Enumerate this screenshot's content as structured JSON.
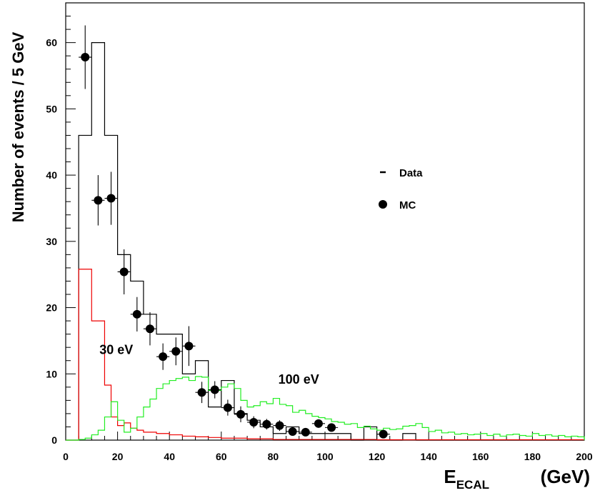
{
  "chart_data": {
    "type": "histogram",
    "xlabel_main": "E",
    "xlabel_sub": "ECAL",
    "xlabel_unit": "(GeV)",
    "ylabel": "Number of events  / 5 GeV",
    "xlim": [
      0,
      200
    ],
    "ylim": [
      0,
      66
    ],
    "xticks": [
      0,
      20,
      40,
      60,
      80,
      100,
      120,
      140,
      160,
      180,
      200
    ],
    "yticks": [
      0,
      10,
      20,
      30,
      40,
      50,
      60
    ],
    "bin_width": 5,
    "legend": [
      {
        "marker": "dash",
        "label": "Data"
      },
      {
        "marker": "dot",
        "label": "MC"
      }
    ],
    "annotations": [
      {
        "text": "30 eV",
        "x": 13,
        "y": 13
      },
      {
        "text": "100 eV",
        "x": 82,
        "y": 8.5
      }
    ],
    "series": [
      {
        "label": "Data",
        "style": "step",
        "color": "#000000",
        "edges": [
          5,
          10,
          15,
          20,
          25,
          30,
          35,
          40,
          45,
          50,
          55,
          60,
          65,
          70,
          75,
          80,
          85,
          90,
          95,
          100,
          105,
          110,
          115,
          120,
          125,
          130,
          135,
          140,
          145,
          150,
          155,
          160,
          165,
          170,
          175,
          180,
          185,
          190,
          195,
          200
        ],
        "values": [
          46,
          60,
          46,
          28,
          24,
          19,
          16,
          16,
          10,
          12,
          5,
          9,
          4,
          3,
          2,
          1,
          2,
          1,
          1,
          1,
          1,
          0,
          2,
          0,
          0,
          1,
          0,
          0,
          0,
          0,
          0,
          0,
          0,
          0,
          0,
          0,
          0,
          0,
          0
        ]
      },
      {
        "label": "MC",
        "style": "points",
        "color": "#000000",
        "x": [
          7.5,
          12.5,
          17.5,
          22.5,
          27.5,
          32.5,
          37.5,
          42.5,
          47.5,
          52.5,
          57.5,
          62.5,
          67.5,
          72.5,
          77.5,
          82.5,
          87.5,
          92.5,
          97.5,
          102.5,
          122.5
        ],
        "y": [
          57.8,
          36.2,
          36.5,
          25.4,
          19.0,
          16.8,
          12.6,
          13.4,
          14.2,
          7.2,
          7.6,
          4.9,
          3.9,
          2.7,
          2.4,
          2.2,
          1.3,
          1.2,
          2.5,
          1.9,
          0.9
        ],
        "yerr": [
          4.8,
          3.8,
          4.0,
          3.4,
          2.6,
          2.5,
          2.0,
          2.1,
          3.0,
          1.6,
          1.3,
          1.2,
          1.2,
          0.9,
          0.8,
          0.8,
          0.5,
          0.4,
          0.6,
          0.5,
          0.4
        ]
      },
      {
        "label": "30 eV",
        "style": "step",
        "color": "#ee0000",
        "edges": [
          0,
          5,
          10,
          15,
          17.5,
          20,
          22.5,
          25,
          27.5,
          30,
          35,
          40,
          45,
          50,
          55,
          60,
          70,
          80,
          100,
          120,
          200
        ],
        "values": [
          0,
          25.8,
          18.0,
          8.3,
          3.5,
          2.2,
          2.6,
          1.8,
          1.5,
          1.2,
          1.0,
          0.8,
          0.6,
          0.5,
          0.4,
          0.3,
          0.2,
          0.1,
          0.1,
          0.05
        ]
      },
      {
        "label": "100 eV",
        "style": "step",
        "color": "#22ee22",
        "edges": [
          0,
          5,
          7.5,
          10,
          12.5,
          15,
          17.5,
          20,
          22.5,
          25,
          27.5,
          30,
          32.5,
          35,
          37.5,
          40,
          42.5,
          45,
          47.5,
          50,
          52.5,
          55,
          57.5,
          60,
          62.5,
          65,
          67.5,
          70,
          72.5,
          75,
          77.5,
          80,
          82.5,
          85,
          87.5,
          90,
          92.5,
          95,
          97.5,
          100,
          102.5,
          105,
          107.5,
          110,
          112.5,
          115,
          117.5,
          120,
          122.5,
          125,
          127.5,
          130,
          132.5,
          135,
          137.5,
          140,
          142.5,
          145,
          147.5,
          150,
          152.5,
          155,
          157.5,
          160,
          162.5,
          165,
          167.5,
          170,
          172.5,
          175,
          177.5,
          180,
          182.5,
          185,
          187.5,
          190,
          192.5,
          195,
          197.5,
          200
        ],
        "values": [
          0,
          0.1,
          0.3,
          0.8,
          1.5,
          3.5,
          5.8,
          3.0,
          1.2,
          1.8,
          3.5,
          5.0,
          6.2,
          7.8,
          8.5,
          9.0,
          9.3,
          9.5,
          9.0,
          9.6,
          9.5,
          7.5,
          7.5,
          8.0,
          8.5,
          7.8,
          6.0,
          5.0,
          5.2,
          5.8,
          5.5,
          6.3,
          5.4,
          5.2,
          4.2,
          4.5,
          4.0,
          3.6,
          3.4,
          3.2,
          2.8,
          2.7,
          2.4,
          2.5,
          1.9,
          2.1,
          1.7,
          1.5,
          1.8,
          1.6,
          1.7,
          2.1,
          2.2,
          2.5,
          1.9,
          1.3,
          1.5,
          1.1,
          1.2,
          0.9,
          1.0,
          0.8,
          0.9,
          1.0,
          0.7,
          0.9,
          0.6,
          0.8,
          0.9,
          0.7,
          0.6,
          1.0,
          0.7,
          0.8,
          0.6,
          0.7,
          0.5,
          0.6,
          0.5
        ]
      }
    ]
  }
}
